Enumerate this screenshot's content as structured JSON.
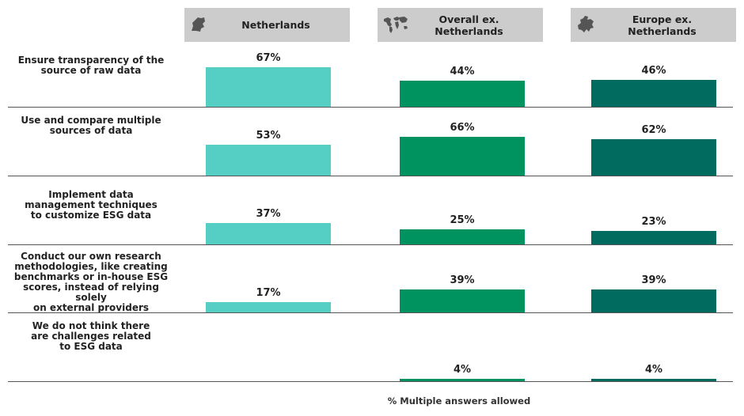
{
  "chart_data": {
    "type": "bar",
    "categories": [
      "Ensure transparency of the\nsource of raw data",
      "Use and compare multiple\nsources of data",
      "Implement data\nmanagement techniques\nto customize ESG data",
      "Conduct our own research\nmethodologies, like creating\nbenchmarks or in-house ESG\nscores, instead of relying solely\non external providers",
      "We do not think there\nare challenges related\nto ESG data"
    ],
    "series": [
      {
        "name": "Netherlands",
        "values": [
          67,
          53,
          37,
          17,
          null
        ],
        "labels": [
          "67%",
          "53%",
          "37%",
          "17%",
          ""
        ],
        "color": "#55cfc4",
        "icon": "netherlands-map-icon"
      },
      {
        "name": "Overall ex.\nNetherlands",
        "values": [
          44,
          66,
          25,
          39,
          4
        ],
        "labels": [
          "44%",
          "66%",
          "25%",
          "39%",
          "4%"
        ],
        "color": "#00935f",
        "icon": "world-map-icon"
      },
      {
        "name": "Europe ex.\nNetherlands",
        "values": [
          46,
          62,
          23,
          39,
          4
        ],
        "labels": [
          "46%",
          "62%",
          "23%",
          "39%",
          "4%"
        ],
        "color": "#006b5e",
        "icon": "europe-map-icon"
      }
    ],
    "ylim": [
      0,
      100
    ],
    "footnote": "% Multiple answers allowed"
  }
}
